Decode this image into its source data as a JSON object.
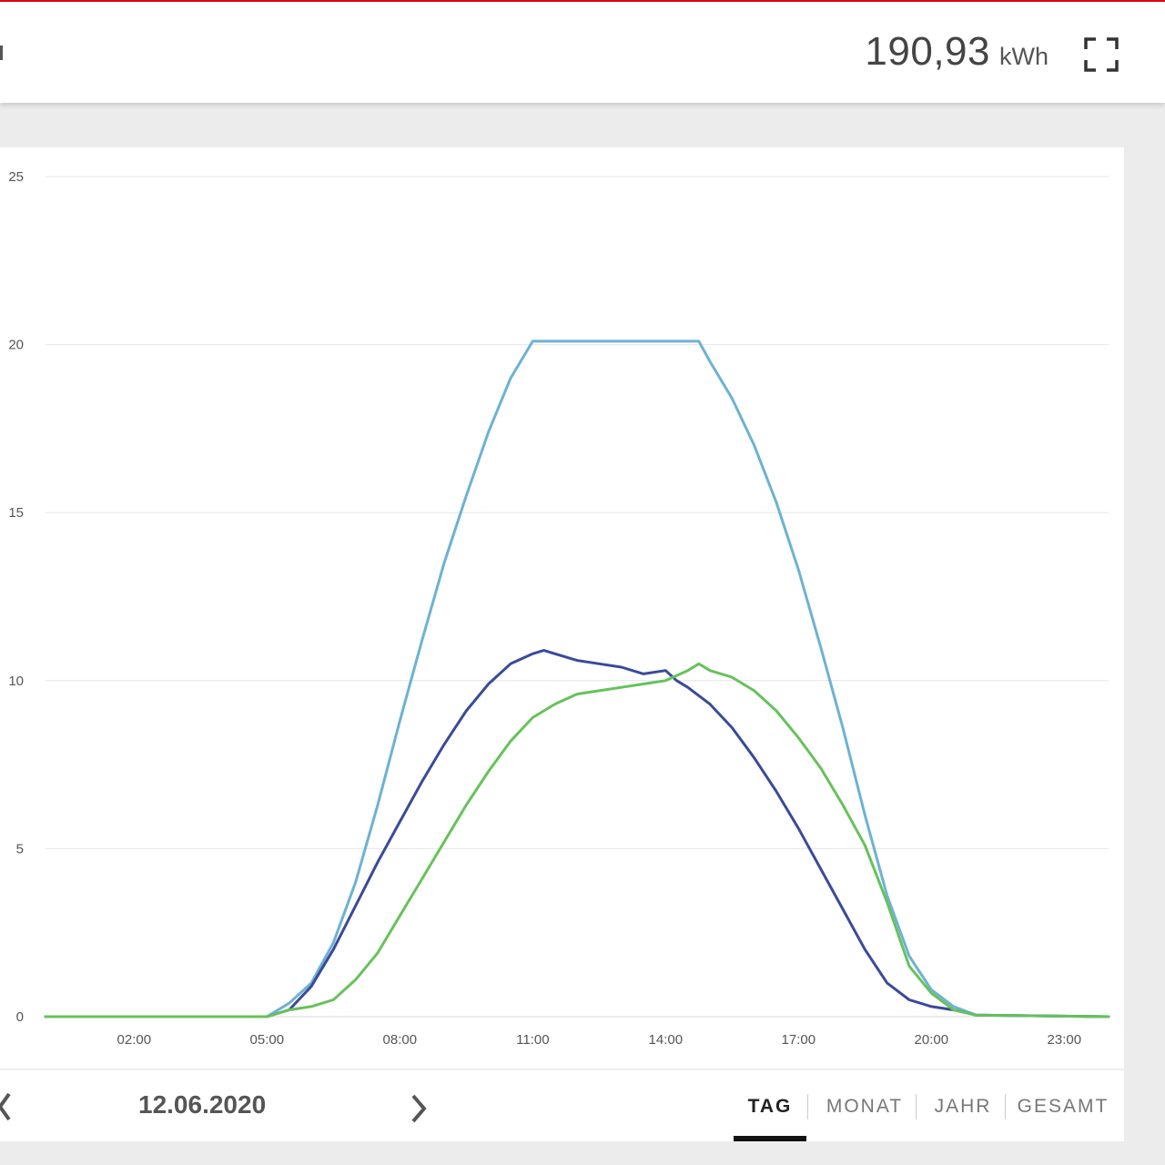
{
  "header": {
    "total_value": "190,93",
    "total_unit": "kWh"
  },
  "icons": {
    "fullscreen": "fullscreen-expand-icon",
    "prev": "chevron-left-icon",
    "next": "chevron-right-icon"
  },
  "colors": {
    "accent": "#e30613",
    "series_light_blue": "#6db2d3",
    "series_dark_blue": "#3a4a9a",
    "series_green": "#66c25a",
    "active_tab_underline": "#111111"
  },
  "navigation": {
    "date": "12.06.2020",
    "tabs": [
      {
        "label": "TAG",
        "active": true
      },
      {
        "label": "MONAT",
        "active": false
      },
      {
        "label": "JAHR",
        "active": false
      },
      {
        "label": "GESAMT",
        "active": false
      }
    ]
  },
  "chart_data": {
    "type": "line",
    "title": "",
    "xlabel": "",
    "ylabel": "",
    "x_range_hours": [
      0,
      24
    ],
    "ylim": [
      0,
      25
    ],
    "yticks": [
      0,
      5,
      10,
      15,
      20,
      25
    ],
    "xticks": [
      "02:00",
      "05:00",
      "08:00",
      "11:00",
      "14:00",
      "17:00",
      "20:00",
      "23:00"
    ],
    "grid": true,
    "legend": "none",
    "series": [
      {
        "color": "#6db2d3",
        "points": [
          [
            "00:00",
            0
          ],
          [
            "05:00",
            0
          ],
          [
            "05:30",
            0.4
          ],
          [
            "06:00",
            1.0
          ],
          [
            "06:30",
            2.2
          ],
          [
            "07:00",
            4.0
          ],
          [
            "07:30",
            6.3
          ],
          [
            "08:00",
            8.8
          ],
          [
            "08:30",
            11.2
          ],
          [
            "09:00",
            13.5
          ],
          [
            "09:30",
            15.5
          ],
          [
            "10:00",
            17.4
          ],
          [
            "10:30",
            19.0
          ],
          [
            "11:00",
            20.1
          ],
          [
            "11:30",
            20.1
          ],
          [
            "12:00",
            20.1
          ],
          [
            "13:00",
            20.1
          ],
          [
            "14:00",
            20.1
          ],
          [
            "14:45",
            20.1
          ],
          [
            "15:00",
            19.5
          ],
          [
            "15:30",
            18.4
          ],
          [
            "16:00",
            17.0
          ],
          [
            "16:30",
            15.3
          ],
          [
            "17:00",
            13.3
          ],
          [
            "17:30",
            11.0
          ],
          [
            "18:00",
            8.6
          ],
          [
            "18:30",
            6.0
          ],
          [
            "19:00",
            3.6
          ],
          [
            "19:30",
            1.8
          ],
          [
            "20:00",
            0.8
          ],
          [
            "20:30",
            0.3
          ],
          [
            "21:00",
            0.05
          ],
          [
            "24:00",
            0
          ]
        ]
      },
      {
        "color": "#3a4a9a",
        "points": [
          [
            "00:00",
            0
          ],
          [
            "05:00",
            0
          ],
          [
            "05:30",
            0.2
          ],
          [
            "06:00",
            0.9
          ],
          [
            "06:30",
            2.0
          ],
          [
            "07:00",
            3.3
          ],
          [
            "07:30",
            4.6
          ],
          [
            "08:00",
            5.8
          ],
          [
            "08:30",
            7.0
          ],
          [
            "09:00",
            8.1
          ],
          [
            "09:30",
            9.1
          ],
          [
            "10:00",
            9.9
          ],
          [
            "10:30",
            10.5
          ],
          [
            "11:00",
            10.8
          ],
          [
            "11:15",
            10.9
          ],
          [
            "11:30",
            10.8
          ],
          [
            "12:00",
            10.6
          ],
          [
            "12:30",
            10.5
          ],
          [
            "13:00",
            10.4
          ],
          [
            "13:30",
            10.2
          ],
          [
            "14:00",
            10.3
          ],
          [
            "14:15",
            10.0
          ],
          [
            "14:30",
            9.8
          ],
          [
            "15:00",
            9.3
          ],
          [
            "15:30",
            8.6
          ],
          [
            "16:00",
            7.7
          ],
          [
            "16:30",
            6.7
          ],
          [
            "17:00",
            5.6
          ],
          [
            "17:30",
            4.4
          ],
          [
            "18:00",
            3.2
          ],
          [
            "18:30",
            2.0
          ],
          [
            "19:00",
            1.0
          ],
          [
            "19:30",
            0.5
          ],
          [
            "20:00",
            0.3
          ],
          [
            "20:30",
            0.2
          ],
          [
            "21:00",
            0.05
          ],
          [
            "24:00",
            0
          ]
        ]
      },
      {
        "color": "#66c25a",
        "points": [
          [
            "00:00",
            0
          ],
          [
            "05:00",
            0
          ],
          [
            "05:30",
            0.2
          ],
          [
            "06:00",
            0.3
          ],
          [
            "06:30",
            0.5
          ],
          [
            "07:00",
            1.1
          ],
          [
            "07:30",
            1.9
          ],
          [
            "08:00",
            3.0
          ],
          [
            "08:30",
            4.1
          ],
          [
            "09:00",
            5.2
          ],
          [
            "09:30",
            6.3
          ],
          [
            "10:00",
            7.3
          ],
          [
            "10:30",
            8.2
          ],
          [
            "11:00",
            8.9
          ],
          [
            "11:30",
            9.3
          ],
          [
            "12:00",
            9.6
          ],
          [
            "12:30",
            9.7
          ],
          [
            "13:00",
            9.8
          ],
          [
            "13:30",
            9.9
          ],
          [
            "14:00",
            10.0
          ],
          [
            "14:30",
            10.3
          ],
          [
            "14:45",
            10.5
          ],
          [
            "15:00",
            10.3
          ],
          [
            "15:30",
            10.1
          ],
          [
            "16:00",
            9.7
          ],
          [
            "16:30",
            9.1
          ],
          [
            "17:00",
            8.3
          ],
          [
            "17:30",
            7.4
          ],
          [
            "18:00",
            6.3
          ],
          [
            "18:30",
            5.1
          ],
          [
            "19:00",
            3.4
          ],
          [
            "19:30",
            1.5
          ],
          [
            "20:00",
            0.7
          ],
          [
            "20:30",
            0.2
          ],
          [
            "21:00",
            0.05
          ],
          [
            "24:00",
            0
          ]
        ]
      }
    ]
  }
}
